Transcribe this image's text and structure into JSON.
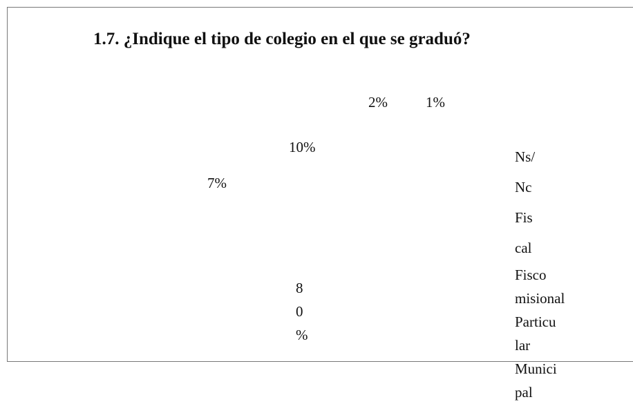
{
  "chart_data": {
    "type": "pie",
    "title": "1.7. ¿Indique el tipo de colegio en el que se graduó?",
    "value_labels": [
      "2%",
      "1%",
      "10%",
      "7%",
      [
        "8",
        "0",
        "%"
      ]
    ],
    "legend": [
      [
        "Ns/",
        "Nc"
      ],
      [
        "Fis",
        "cal"
      ],
      [
        "Fisco",
        "misional"
      ],
      [
        "Particu",
        "lar"
      ],
      [
        "Munici",
        "pal"
      ]
    ]
  }
}
